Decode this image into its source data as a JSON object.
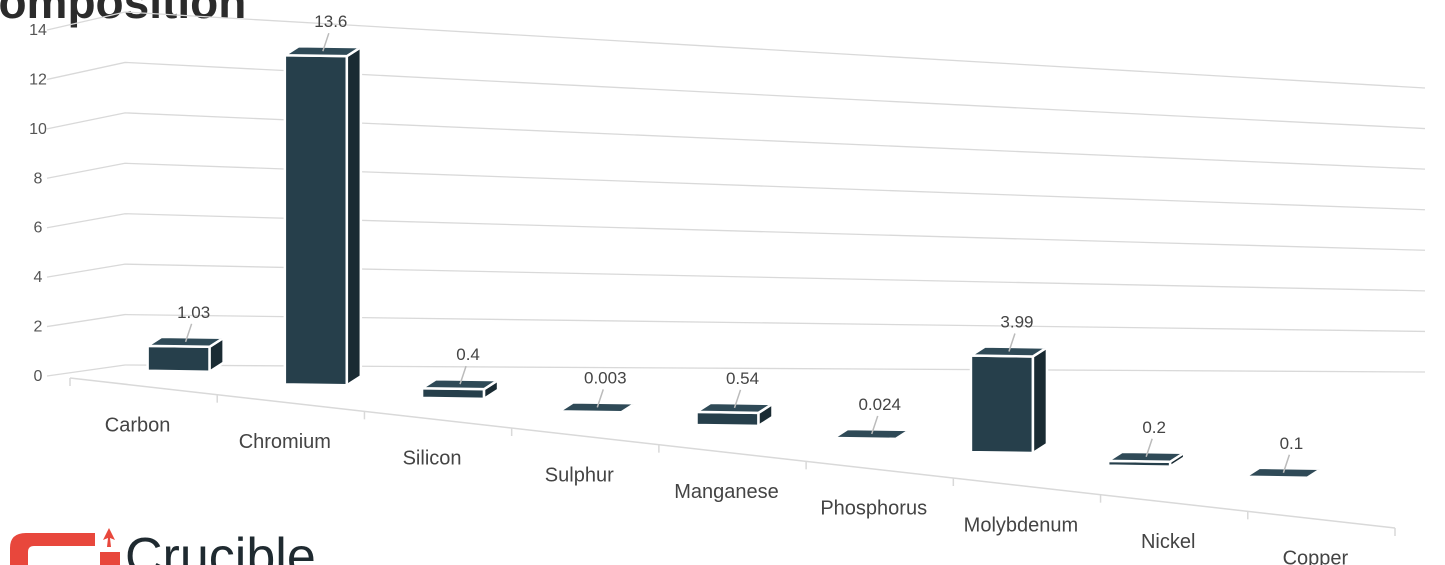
{
  "chart_data": {
    "type": "bar",
    "title": "Alloy Composition",
    "categories": [
      "Carbon",
      "Chromium",
      "Silicon",
      "Sulphur",
      "Manganese",
      "Phosphorus",
      "Molybdenum",
      "Nickel",
      "Copper"
    ],
    "values": [
      1.03,
      13.6,
      0.4,
      0.003,
      0.54,
      0.024,
      3.99,
      0.2,
      0.1
    ],
    "data_labels": [
      "1.03",
      "13.6",
      "0.4",
      "0.003",
      "0.54",
      "0.024",
      "3.99",
      "0.2",
      "0.1"
    ],
    "y_ticks": [
      "0",
      "2",
      "4",
      "6",
      "8",
      "10",
      "12",
      "14"
    ],
    "ylim": [
      0,
      14
    ],
    "grid": true,
    "style": "3d-column",
    "colors": {
      "front": "#263f4b",
      "side": "#1a2b33",
      "top": "#2f4a57",
      "grid": "#d9d9d9",
      "edge": "#ffffff"
    }
  },
  "logo": {
    "text": "Crucible",
    "color": "#e8473c"
  }
}
